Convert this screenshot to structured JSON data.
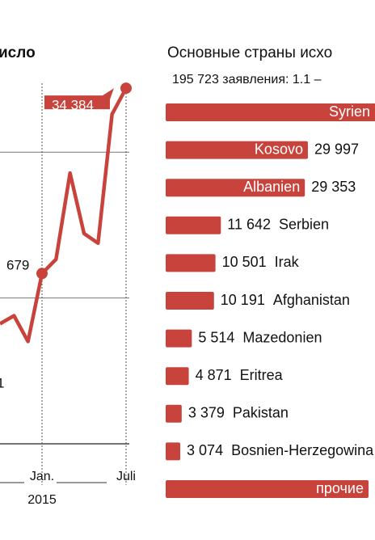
{
  "chart_data": [
    {
      "type": "line",
      "title": "исло",
      "categories": [
        null,
        null,
        null,
        "Jan.",
        null,
        null,
        null,
        null,
        null,
        "Juli"
      ],
      "x_sublabel": "2015",
      "series": [
        {
          "color": "#c8433b",
          "values": [
            18232,
            18785,
            17017,
            21679,
            22652,
            28564,
            24420,
            23757,
            32597,
            34384
          ],
          "value_labels": [
            null,
            null,
            null,
            null,
            null,
            null,
            null,
            null,
            null,
            "34 384"
          ]
        }
      ],
      "annotations": [
        "679",
        "1"
      ],
      "ylim": [
        10000,
        35000
      ],
      "yticks": [
        10000,
        20000,
        30000
      ],
      "grid": true
    },
    {
      "type": "barh",
      "title": "Основные страны исхо",
      "subtitle": "195 723 заявления: 1.1 – ",
      "color": "#c8433b",
      "categories": [
        "Syrien",
        "Kosovo",
        "Albanien",
        "Serbien",
        "Irak",
        "Afghanistan",
        "Mazedonien",
        "Eritrea",
        "Pakistan",
        "Bosnien-Herzegowina",
        "прочие"
      ],
      "values": [
        44417,
        29997,
        29353,
        11642,
        10501,
        10191,
        5514,
        4871,
        3379,
        3074,
        42784
      ],
      "value_labels": [
        null,
        "29 997",
        "29 353",
        "11 642",
        "10 501",
        "10 191",
        "5 514",
        "4 871",
        "3 379",
        "3 074",
        null
      ],
      "xlim": [
        0,
        75000
      ]
    }
  ]
}
